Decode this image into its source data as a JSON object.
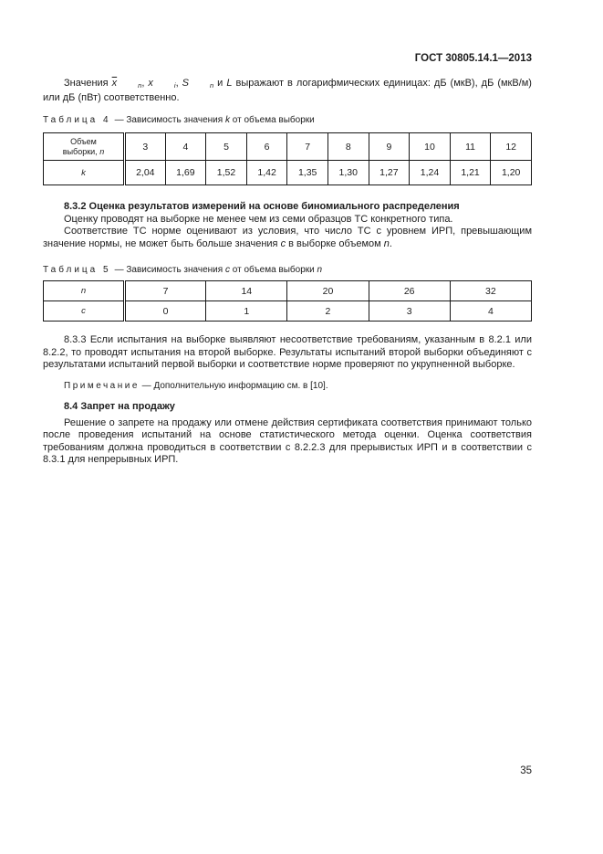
{
  "header": {
    "doc_number": "ГОСТ 30805.14.1—2013"
  },
  "intro": {
    "segments": [
      {
        "t": "Значения "
      },
      {
        "t": "x",
        "i": true,
        "o": true,
        "s": "n"
      },
      {
        "t": ", "
      },
      {
        "t": "x",
        "i": true,
        "s": "i"
      },
      {
        "t": ", "
      },
      {
        "t": "S",
        "i": true,
        "s": "n"
      },
      {
        "t": " и "
      },
      {
        "t": "L",
        "i": true
      },
      {
        "t": " выражают в логарифмических единицах: дБ (мкВ), дБ (мкВ/м) или дБ (пВт) соответственно."
      }
    ]
  },
  "table4": {
    "caption_label": "Таблица 4",
    "caption_rest": [
      {
        "t": "— Зависимость значения "
      },
      {
        "t": "k",
        "i": true
      },
      {
        "t": " от объема выборки"
      }
    ],
    "header_line1": "Объем",
    "header_line2": [
      {
        "t": "выборки, "
      },
      {
        "t": "n",
        "i": true
      }
    ],
    "row_label": [
      {
        "t": "k",
        "i": true
      }
    ],
    "columns": [
      "3",
      "4",
      "5",
      "6",
      "7",
      "8",
      "9",
      "10",
      "11",
      "12"
    ],
    "values": [
      "2,04",
      "1,69",
      "1,52",
      "1,42",
      "1,35",
      "1,30",
      "1,27",
      "1,24",
      "1,21",
      "1,20"
    ]
  },
  "section_832": {
    "heading": "8.3.2  Оценка результатов измерений на основе биномиального распределения",
    "p1": "Оценку проводят на выборке не менее чем из семи образцов ТС конкретного типа.",
    "p2": [
      {
        "t": "Соответствие ТС норме оценивают из условия, что число ТС с уровнем ИРП, превышающим значение нормы, не может быть больше значения "
      },
      {
        "t": "c",
        "i": true
      },
      {
        "t": " в выборке объемом "
      },
      {
        "t": "n",
        "i": true
      },
      {
        "t": "."
      }
    ]
  },
  "table5": {
    "caption_label": "Таблица 5",
    "caption_rest": [
      {
        "t": "— Зависимость значения "
      },
      {
        "t": "c",
        "i": true
      },
      {
        "t": " от объема выборки "
      },
      {
        "t": "n",
        "i": true
      }
    ],
    "row1_label": [
      {
        "t": "n",
        "i": true
      }
    ],
    "row2_label": [
      {
        "t": "c",
        "i": true
      }
    ],
    "row1_values": [
      "7",
      "14",
      "20",
      "26",
      "32"
    ],
    "row2_values": [
      "0",
      "1",
      "2",
      "3",
      "4"
    ]
  },
  "section_833": {
    "p": "8.3.3  Если испытания на выборке выявляют несоответствие требованиям, указанным в 8.2.1 или 8.2.2, то проводят испытания на второй выборке. Результаты испытаний второй выборки объединяют с результатами испытаний первой выборки и соответствие норме проверяют по укрупненной выборке."
  },
  "note": {
    "label": "Примечание",
    "text": " — Дополнительную информацию см. в [10]."
  },
  "section_84": {
    "heading": "8.4  Запрет на продажу",
    "p": "Решение о запрете на продажу или отмене действия сертификата соответствия принимают только после проведения испытаний на основе статистического метода оценки. Оценка соответствия требованиям должна проводиться в соответствии с 8.2.2.3 для прерывистых ИРП и в соответствии с 8.3.1 для непрерывных ИРП."
  },
  "footer": {
    "page_number": "35"
  }
}
